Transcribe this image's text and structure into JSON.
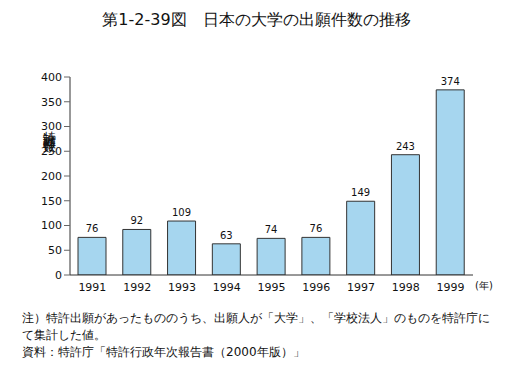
{
  "chart_data": {
    "type": "bar",
    "title": "第1-2-39図　日本の大学の出願件数の推移",
    "y_label": "特許出願件数",
    "x_label": "(年)",
    "categories": [
      "1991",
      "1992",
      "1993",
      "1994",
      "1995",
      "1996",
      "1997",
      "1998",
      "1999"
    ],
    "values": [
      76,
      92,
      109,
      63,
      74,
      76,
      149,
      243,
      374
    ],
    "color": "#a6d6ef",
    "ylim": [
      0,
      400
    ],
    "yticks": [
      0,
      50,
      100,
      150,
      200,
      250,
      300,
      350,
      400
    ],
    "grid": false,
    "data_labels": true,
    "notes": [
      "注）特許出願があったもののうち、出願人が「大学」、「学校法人」のものを特許庁にて集計した値。",
      "資料：特許庁「特許行政年次報告書（2000年版）」"
    ]
  }
}
